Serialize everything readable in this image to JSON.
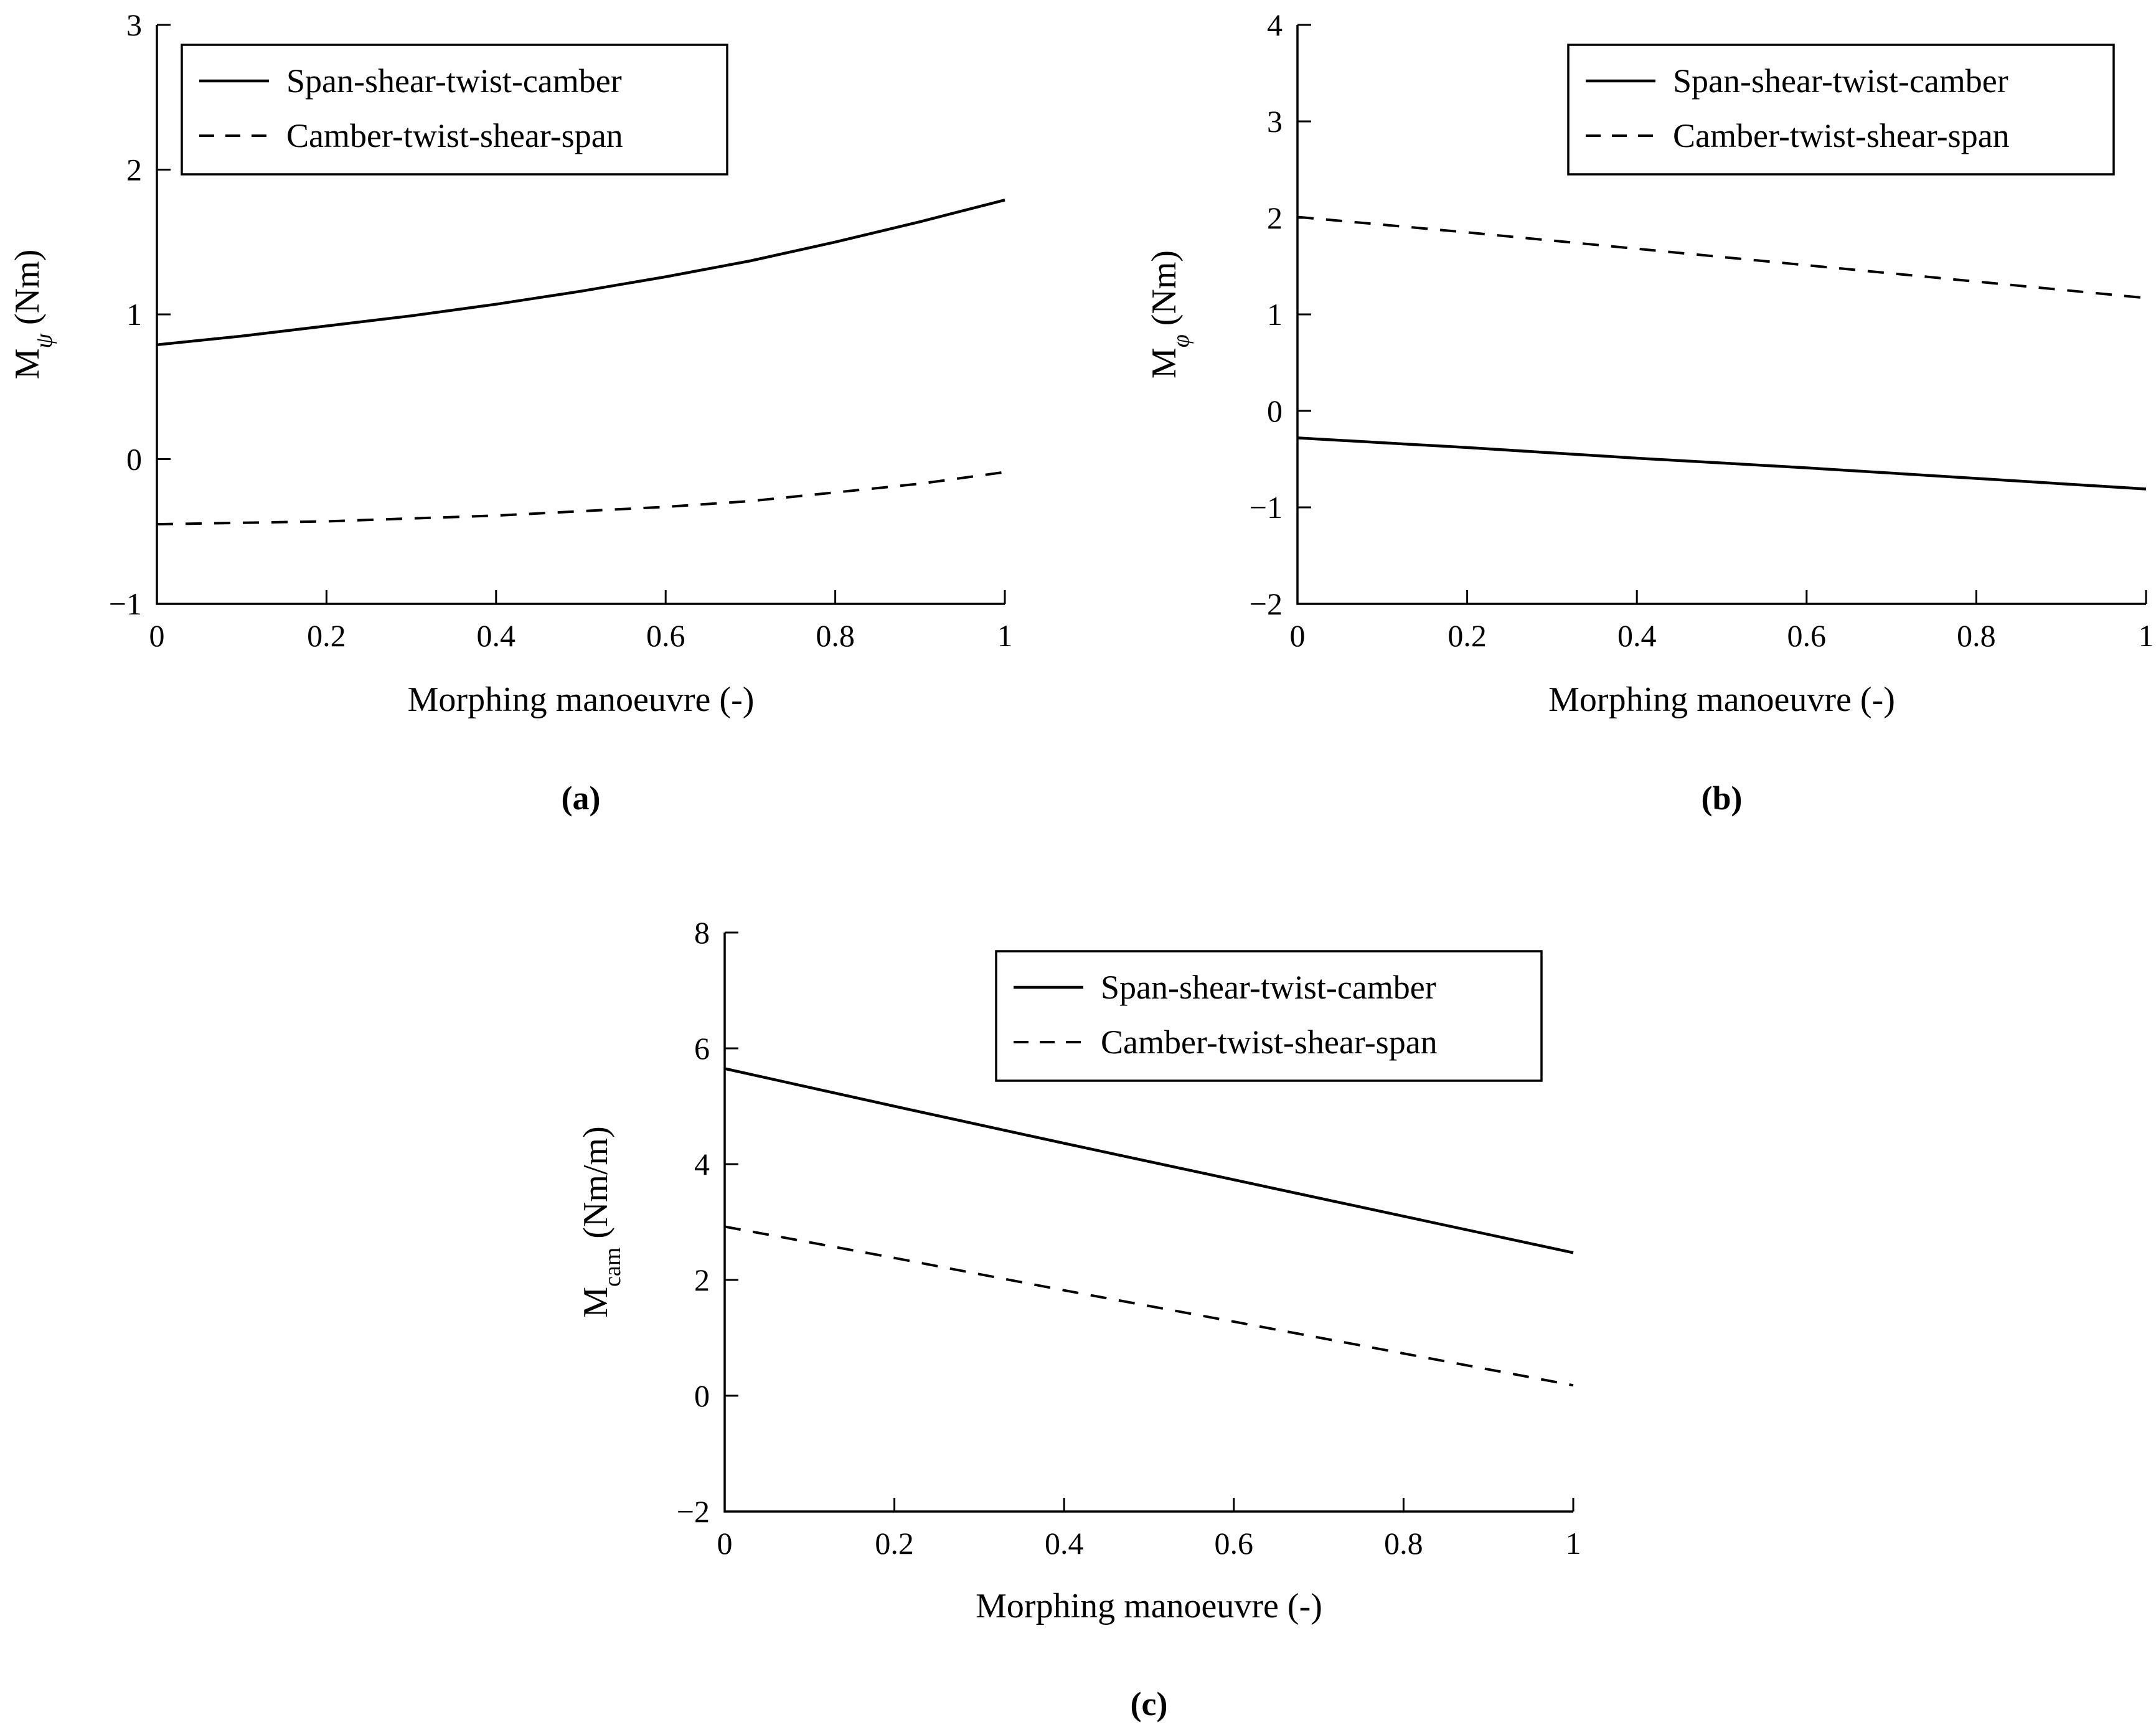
{
  "chart_data": [
    {
      "type": "line",
      "caption": "(a)",
      "xlabel": "Morphing manoeuvre (-)",
      "ylabel_main": "M",
      "ylabel_sub": "ψ",
      "ylabel_unit": " (Nm)",
      "xlim": [
        0,
        1
      ],
      "ylim": [
        -1,
        3
      ],
      "xticks": [
        0,
        0.2,
        0.4,
        0.6,
        0.8,
        1
      ],
      "xtick_labels": [
        "0",
        "0.2",
        "0.4",
        "0.6",
        "0.8",
        "1"
      ],
      "yticks": [
        -1,
        0,
        1,
        2,
        3
      ],
      "ytick_labels": [
        "−1",
        "0",
        "1",
        "2",
        "3"
      ],
      "legend_position": "top-left",
      "series": [
        {
          "name": "Span-shear-twist-camber",
          "style": "solid",
          "x": [
            0,
            0.1,
            0.2,
            0.3,
            0.4,
            0.5,
            0.6,
            0.7,
            0.8,
            0.9,
            1
          ],
          "y": [
            0.79,
            0.85,
            0.92,
            0.99,
            1.07,
            1.16,
            1.26,
            1.37,
            1.5,
            1.64,
            1.79
          ]
        },
        {
          "name": "Camber-twist-shear-span",
          "style": "dashed",
          "x": [
            0,
            0.1,
            0.2,
            0.3,
            0.4,
            0.5,
            0.6,
            0.7,
            0.8,
            0.9,
            1
          ],
          "y": [
            -0.45,
            -0.44,
            -0.43,
            -0.41,
            -0.39,
            -0.36,
            -0.33,
            -0.29,
            -0.23,
            -0.17,
            -0.09
          ]
        }
      ]
    },
    {
      "type": "line",
      "caption": "(b)",
      "xlabel": "Morphing manoeuvre (-)",
      "ylabel_main": "M",
      "ylabel_sub": "φ",
      "ylabel_unit": " (Nm)",
      "xlim": [
        0,
        1
      ],
      "ylim": [
        -2,
        4
      ],
      "xticks": [
        0,
        0.2,
        0.4,
        0.6,
        0.8,
        1
      ],
      "xtick_labels": [
        "0",
        "0.2",
        "0.4",
        "0.6",
        "0.8",
        "1"
      ],
      "yticks": [
        -2,
        -1,
        0,
        1,
        2,
        3,
        4
      ],
      "ytick_labels": [
        "−2",
        "−1",
        "0",
        "1",
        "2",
        "3",
        "4"
      ],
      "legend_position": "top-right",
      "series": [
        {
          "name": "Span-shear-twist-camber",
          "style": "solid",
          "x": [
            0,
            0.2,
            0.4,
            0.6,
            0.8,
            1
          ],
          "y": [
            -0.28,
            -0.38,
            -0.49,
            -0.59,
            -0.7,
            -0.81
          ]
        },
        {
          "name": "Camber-twist-shear-span",
          "style": "dashed",
          "x": [
            0,
            0.2,
            0.4,
            0.6,
            0.8,
            1
          ],
          "y": [
            2.01,
            1.85,
            1.68,
            1.51,
            1.34,
            1.17
          ]
        }
      ]
    },
    {
      "type": "line",
      "caption": "(c)",
      "xlabel": "Morphing manoeuvre (-)",
      "ylabel_main": "M",
      "ylabel_sub": "cam",
      "ylabel_unit": " (Nm/m)",
      "xlim": [
        0,
        1
      ],
      "ylim": [
        -2,
        8
      ],
      "xticks": [
        0,
        0.2,
        0.4,
        0.6,
        0.8,
        1
      ],
      "xtick_labels": [
        "0",
        "0.2",
        "0.4",
        "0.6",
        "0.8",
        "1"
      ],
      "yticks": [
        -2,
        0,
        2,
        4,
        6,
        8
      ],
      "ytick_labels": [
        "−2",
        "0",
        "2",
        "4",
        "6",
        "8"
      ],
      "legend_position": "top-right",
      "series": [
        {
          "name": "Span-shear-twist-camber",
          "style": "solid",
          "x": [
            0,
            0.2,
            0.4,
            0.6,
            0.8,
            1
          ],
          "y": [
            5.65,
            5.0,
            4.36,
            3.73,
            3.1,
            2.47
          ]
        },
        {
          "name": "Camber-twist-shear-span",
          "style": "dashed",
          "x": [
            0,
            0.2,
            0.4,
            0.6,
            0.8,
            1
          ],
          "y": [
            2.92,
            2.38,
            1.82,
            1.28,
            0.73,
            0.18
          ]
        }
      ]
    }
  ]
}
